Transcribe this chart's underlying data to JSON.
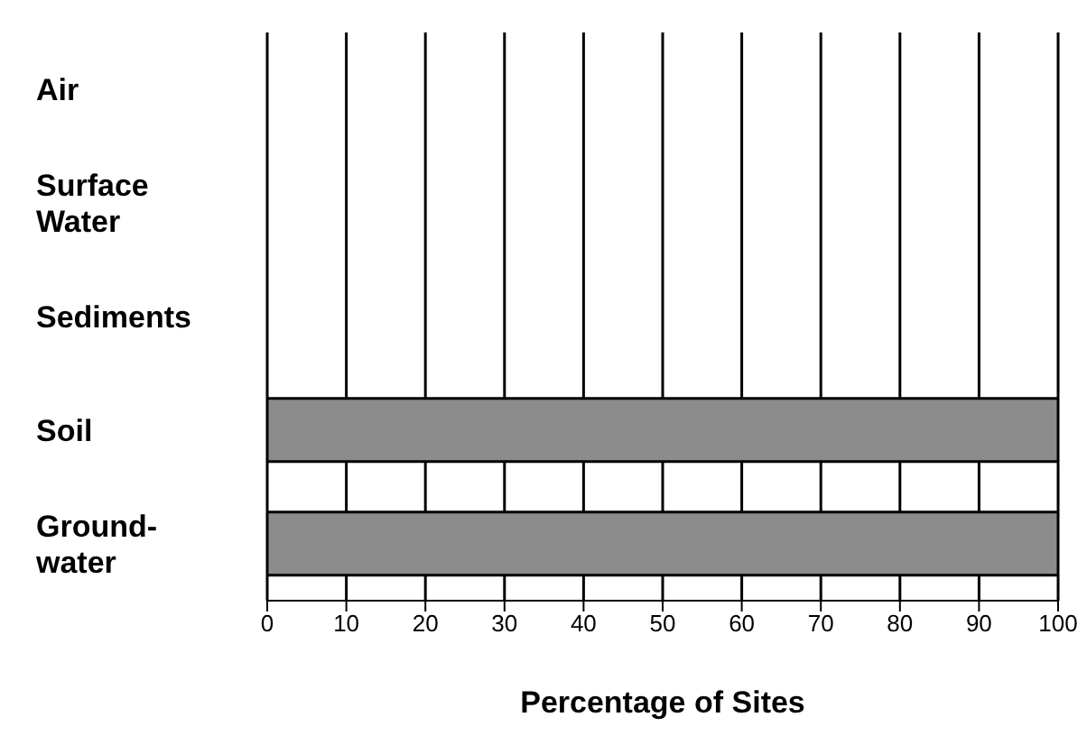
{
  "chart_data": {
    "type": "bar",
    "orientation": "horizontal",
    "xlabel": "Percentage of Sites",
    "categories": [
      "Air",
      "Surface Water",
      "Sediments",
      "Soil",
      "Ground-water"
    ],
    "values": [
      0,
      0,
      0,
      100,
      100
    ],
    "color": "#8c8c8c",
    "xlim": [
      0,
      100
    ],
    "xticks": [
      0,
      10,
      20,
      30,
      40,
      50,
      60,
      70,
      80,
      90,
      100
    ],
    "grid": "x"
  }
}
